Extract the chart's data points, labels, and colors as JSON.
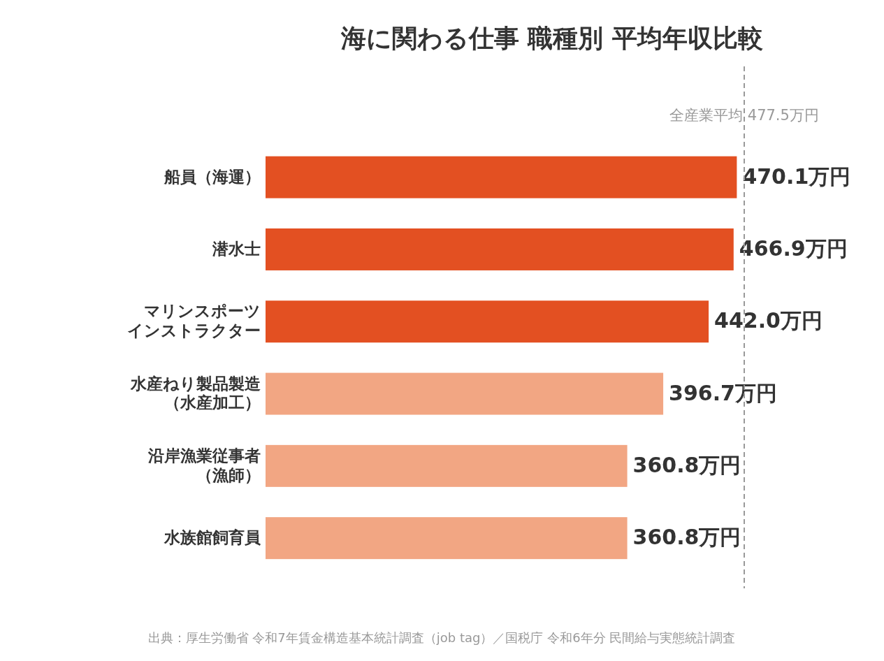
{
  "chart_data": {
    "type": "bar",
    "orientation": "horizontal",
    "title": "海に関わる仕事 職種別 平均年収比較",
    "categories": [
      "船員（海運）",
      "潜水士",
      "マリンスポーツインストラクター",
      "水産ねり製品製造（水産加工）",
      "沿岸漁業従事者（漁師）",
      "水族館飼育員"
    ],
    "values": [
      470.1,
      466.9,
      442.0,
      396.7,
      360.8,
      360.8
    ],
    "colors": [
      "#e35022",
      "#e35022",
      "#e35022",
      "#f2a683",
      "#f2a683",
      "#f2a683"
    ],
    "value_labels": [
      "470.1万円",
      "466.9万円",
      "442.0万円",
      "396.7万円",
      "360.8万円",
      "360.8万円"
    ],
    "ref_lines": [
      {
        "axis": "x",
        "value": 477.5,
        "label": "全産業平均 477.5万円",
        "color": "#999999",
        "line_style": "dashed"
      }
    ],
    "annotations": [
      "出典：厚生労働省 令和7年賃金構造基本統計調査（job tag）／国税庁 令和6年分 民間給与実態統計調査"
    ]
  }
}
